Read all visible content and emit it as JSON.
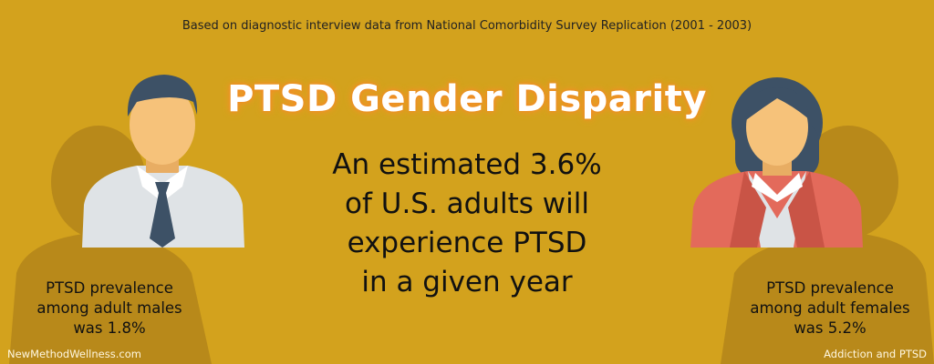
{
  "header": {
    "source_note": "Based on diagnostic interview data from National Comorbidity Survey Replication (2001 - 2003)",
    "title": "PTSD Gender Disparity"
  },
  "statement": {
    "lines": [
      "An estimated 3.6%",
      "of U.S. adults will",
      "experience PTSD",
      "in a given year"
    ]
  },
  "male": {
    "lines": [
      "PTSD prevalence",
      "among adult males",
      "was 1.8%"
    ]
  },
  "female": {
    "lines": [
      "PTSD prevalence",
      "among adult females",
      "was 5.2%"
    ]
  },
  "footer": {
    "left": "NewMethodWellness.com",
    "right": "Addiction and PTSD"
  }
}
